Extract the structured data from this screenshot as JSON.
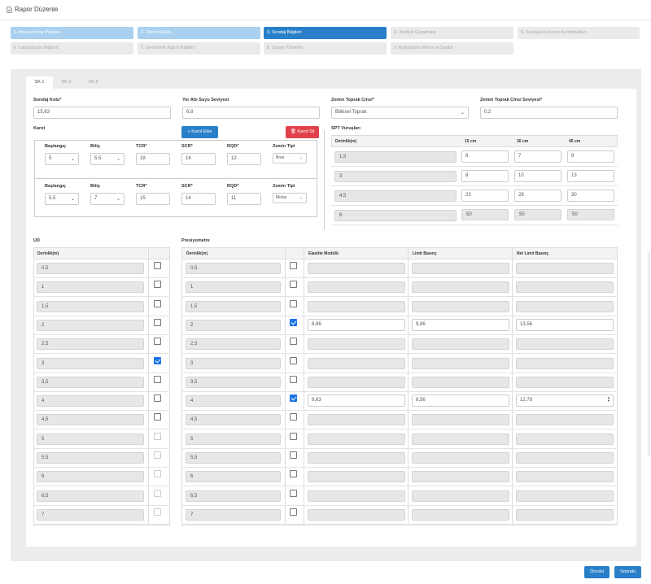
{
  "header": {
    "title": "Rapor Düzenle"
  },
  "wizard": [
    {
      "label": "1. Arsa ve İmar Planları",
      "state": "done"
    },
    {
      "label": "2. Zemin Etüdü",
      "state": "done"
    },
    {
      "label": "3. Sondaj Bilgileri",
      "state": "active"
    },
    {
      "label": "4. Jeofizik Çalışmalar",
      "state": "todo"
    },
    {
      "label": "5. Sondaj ve Deney Koordinatları",
      "state": "todo"
    },
    {
      "label": "6. Laboratuvar Bilgileri",
      "state": "todo"
    },
    {
      "label": "7. Geoteknik Rapor Bilgileri",
      "state": "todo"
    },
    {
      "label": "8. Dosya Yükleme",
      "state": "todo"
    },
    {
      "label": "9. Aydınlatma Metni ve Şartlar",
      "state": "todo"
    }
  ],
  "tabs": [
    "SK 1",
    "SK 2",
    "SK 3"
  ],
  "form": {
    "sondaj_kotu_label": "Sondaj Kotu*",
    "sondaj_kotu": "15,63",
    "yer_alti_label": "Yer Altı Suyu Seviyesi",
    "yer_alti": "6,8",
    "zemin_cinsi_label": "Zemin Toprak Cinsi*",
    "zemin_cinsi": "Bitkisel Toprak",
    "zemin_seviye_label": "Zemin Toprak Cinsi Seviyesi*",
    "zemin_seviye": "0,2"
  },
  "karot": {
    "title": "Karot",
    "add_label": "Karot Ekle",
    "delete_label": "Karot Sil",
    "col_baslangic": "Başlangıç",
    "col_bitis": "Bitiş",
    "col_tcr": "TCR*",
    "col_scr": "SCR*",
    "col_rqd": "RQD*",
    "col_zemin": "Zemin Tipi",
    "rows": [
      {
        "baslangic": "5",
        "bitis": "5.5",
        "tcr": "18",
        "scr": "16",
        "rqd": "12",
        "zemin": "Bres"
      },
      {
        "baslangic": "5.5",
        "bitis": "7",
        "tcr": "15",
        "scr": "14",
        "rqd": "11",
        "zemin": "Molas"
      }
    ]
  },
  "spt": {
    "title": "SPT Vuruşları",
    "col_derinlik": "Derinlik(m)",
    "col_15": "15 cm",
    "col_30": "30 cm",
    "col_45": "45 cm",
    "rows": [
      {
        "d": "1,5",
        "a": "8",
        "b": "7",
        "c": "9"
      },
      {
        "d": "3",
        "a": "8",
        "b": "10",
        "c": "13"
      },
      {
        "d": "4,5",
        "a": "23",
        "b": "28",
        "c": "30"
      },
      {
        "d": "6",
        "a": "50",
        "b": "50",
        "c": "50"
      }
    ]
  },
  "ud": {
    "title": "UD",
    "col_derinlik": "Derinlik(m)"
  },
  "pres": {
    "title": "Presiyometre",
    "col_derinlik": "Derinlik(m)",
    "col_elastite": "Elastite Modülü",
    "col_limit": "Limit Basınç",
    "col_net": "Net Limit Basınç"
  },
  "depths": [
    {
      "d": "0,5",
      "ud": false,
      "ud_dis": false,
      "pr": false,
      "e": "",
      "l": "",
      "n": ""
    },
    {
      "d": "1",
      "ud": false,
      "ud_dis": false,
      "pr": false,
      "e": "",
      "l": "",
      "n": ""
    },
    {
      "d": "1,5",
      "ud": false,
      "ud_dis": false,
      "pr": false,
      "e": "",
      "l": "",
      "n": ""
    },
    {
      "d": "2",
      "ud": false,
      "ud_dis": false,
      "pr": true,
      "e": "8,86",
      "l": "9,86",
      "n": "13,56"
    },
    {
      "d": "2,5",
      "ud": false,
      "ud_dis": false,
      "pr": false,
      "e": "",
      "l": "",
      "n": ""
    },
    {
      "d": "3",
      "ud": true,
      "ud_dis": false,
      "pr": false,
      "e": "",
      "l": "",
      "n": ""
    },
    {
      "d": "3,5",
      "ud": false,
      "ud_dis": false,
      "pr": false,
      "e": "",
      "l": "",
      "n": ""
    },
    {
      "d": "4",
      "ud": false,
      "ud_dis": false,
      "pr": true,
      "e": "9,63",
      "l": "8,56",
      "n": "12,78"
    },
    {
      "d": "4,5",
      "ud": false,
      "ud_dis": false,
      "pr": false,
      "e": "",
      "l": "",
      "n": ""
    },
    {
      "d": "5",
      "ud": false,
      "ud_dis": true,
      "pr": false,
      "e": "",
      "l": "",
      "n": ""
    },
    {
      "d": "5,5",
      "ud": false,
      "ud_dis": true,
      "pr": false,
      "e": "",
      "l": "",
      "n": ""
    },
    {
      "d": "6",
      "ud": false,
      "ud_dis": true,
      "pr": false,
      "e": "",
      "l": "",
      "n": ""
    },
    {
      "d": "6,5",
      "ud": false,
      "ud_dis": true,
      "pr": false,
      "e": "",
      "l": "",
      "n": ""
    },
    {
      "d": "7",
      "ud": false,
      "ud_dis": true,
      "pr": false,
      "e": "",
      "l": "",
      "n": ""
    }
  ],
  "footer": {
    "prev_label": "Önceki",
    "next_label": "Sonraki"
  },
  "colors": {
    "primary": "#2980c9",
    "done": "#a9d1ef",
    "danger": "#e0424b",
    "check": "#1a73e8"
  }
}
